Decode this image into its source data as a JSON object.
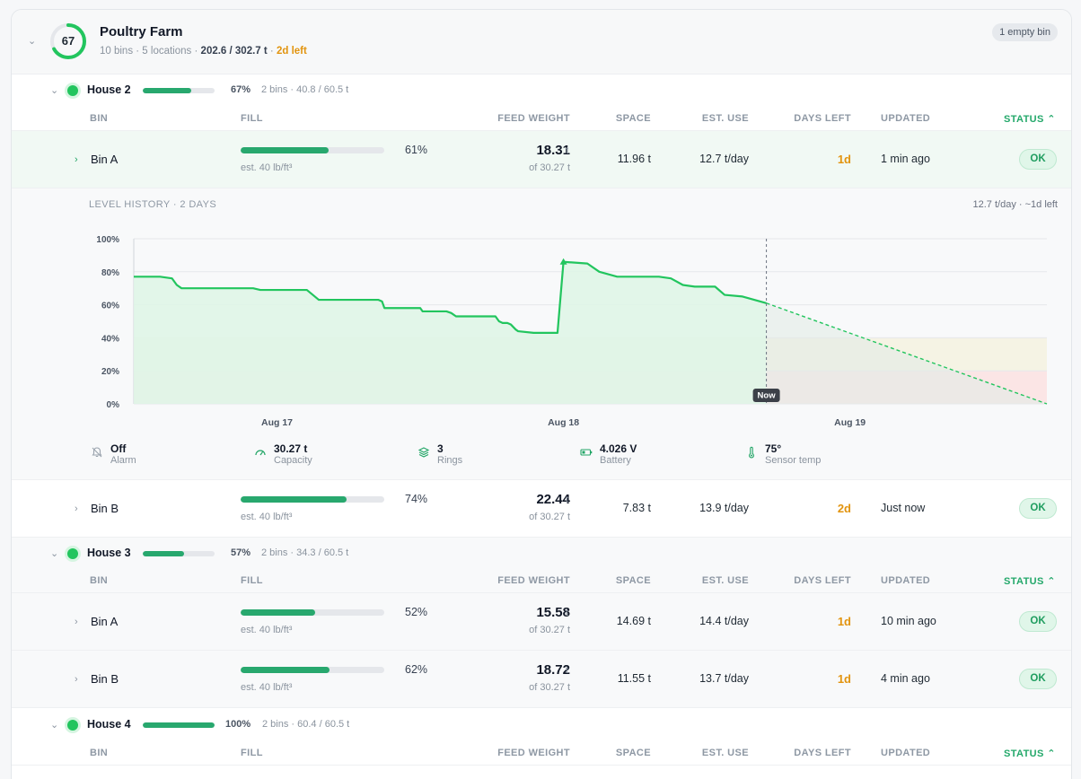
{
  "farm": {
    "score": "67",
    "score_fraction": 0.67,
    "name": "Poultry Farm",
    "bins_locations": "10 bins · 5 locations",
    "sep": "·",
    "weight": "202.6 / 302.7 t",
    "days_left": "2d left",
    "empty_badge": "1 empty bin"
  },
  "columns": {
    "bin": "BIN",
    "fill": "FILL",
    "feed_weight": "FEED WEIGHT",
    "space": "SPACE",
    "est_use": "EST. USE",
    "days_left": "DAYS LEFT",
    "updated": "UPDATED",
    "status": "STATUS"
  },
  "houses": [
    {
      "name": "House 2",
      "fill_fraction": 0.67,
      "pct": "67%",
      "meta": "2 bins · 40.8 / 60.5 t",
      "bins": [
        {
          "name": "Bin A",
          "fill_fraction": 0.61,
          "pct": "61%",
          "est": "est. 40 lb/ft³",
          "weight": "18.31",
          "unit": "t",
          "of": "of 30.27 t",
          "space": "11.96 t",
          "use": "12.7 t/day",
          "days": "1d",
          "updated": "1 min ago",
          "status": "OK"
        },
        {
          "name": "Bin B",
          "fill_fraction": 0.74,
          "pct": "74%",
          "est": "est. 40 lb/ft³",
          "weight": "22.44",
          "unit": "t",
          "of": "of 30.27 t",
          "space": "7.83 t",
          "use": "13.9 t/day",
          "days": "2d",
          "updated": "Just now",
          "status": "OK"
        }
      ]
    },
    {
      "name": "House 3",
      "fill_fraction": 0.57,
      "pct": "57%",
      "meta": "2 bins · 34.3 / 60.5 t",
      "bins": [
        {
          "name": "Bin A",
          "fill_fraction": 0.52,
          "pct": "52%",
          "est": "est. 40 lb/ft³",
          "weight": "15.58",
          "unit": "t",
          "of": "of 30.27 t",
          "space": "14.69 t",
          "use": "14.4 t/day",
          "days": "1d",
          "updated": "10 min ago",
          "status": "OK"
        },
        {
          "name": "Bin B",
          "fill_fraction": 0.62,
          "pct": "62%",
          "est": "est. 40 lb/ft³",
          "weight": "18.72",
          "unit": "t",
          "of": "of 30.27 t",
          "space": "11.55 t",
          "use": "13.7 t/day",
          "days": "1d",
          "updated": "4 min ago",
          "status": "OK"
        }
      ]
    },
    {
      "name": "House 4",
      "fill_fraction": 1.0,
      "pct": "100%",
      "meta": "2 bins · 60.4 / 60.5 t",
      "bins": []
    }
  ],
  "history": {
    "title": "LEVEL HISTORY · 2 DAYS",
    "rate": "12.7 t/day · ~1d left",
    "now_label": "Now",
    "stats": [
      {
        "value": "Off",
        "label": "Alarm",
        "icon": "bell-off-icon"
      },
      {
        "value": "30.27 t",
        "label": "Capacity",
        "icon": "gauge-icon"
      },
      {
        "value": "3",
        "label": "Rings",
        "icon": "layers-icon"
      },
      {
        "value": "4.026 V",
        "label": "Battery",
        "icon": "battery-icon"
      },
      {
        "value": "75°",
        "label": "Sensor temp",
        "icon": "thermometer-icon"
      }
    ]
  },
  "chart_data": {
    "type": "line",
    "x_unit": "hours since Aug 16 12:00",
    "x_ticks": [
      {
        "x": 12,
        "label": "Aug 17"
      },
      {
        "x": 36,
        "label": "Aug 18"
      },
      {
        "x": 60,
        "label": "Aug 19"
      }
    ],
    "xlim": [
      0,
      76.5
    ],
    "ylim": [
      0,
      100
    ],
    "y_ticks": [
      "0%",
      "20%",
      "40%",
      "60%",
      "80%",
      "100%"
    ],
    "grid": true,
    "series": [
      {
        "type": "actual",
        "x": [
          0,
          2.2,
          3.2,
          3.6,
          4.0,
          7,
          9.0,
          10.0,
          10.6,
          11.0,
          14.5,
          15.0,
          15.5,
          18.2,
          18.6,
          19.2,
          20.5,
          20.8,
          21.0,
          23.5,
          24.0,
          24.2,
          26.2,
          26.6,
          27.0,
          28.2,
          28.6,
          29.0,
          30.3,
          30.6,
          30.9,
          31.0,
          31.3,
          31.6,
          32.0,
          32.2,
          33.5,
          34.0,
          35.5,
          36.0,
          38.0,
          39.0,
          40.5,
          41.2,
          41.5,
          42.0,
          42.5,
          43.5,
          44.0,
          45.0,
          46.0,
          47.0,
          48.0,
          48.7,
          49.5,
          51.0,
          53.0
        ],
        "y": [
          77,
          77,
          76,
          72,
          70,
          70,
          70,
          70,
          69,
          69,
          69,
          66,
          63,
          63,
          63,
          63,
          63,
          62,
          58,
          58,
          58,
          56,
          56,
          55,
          53,
          53,
          53,
          53,
          53,
          50,
          49,
          49,
          49,
          48,
          45,
          44,
          43,
          43,
          43,
          86,
          85,
          80,
          77,
          77,
          77,
          77,
          77,
          77,
          77,
          76,
          72,
          71,
          71,
          71,
          66,
          65,
          61
        ]
      },
      {
        "type": "forecast",
        "x": [
          53,
          76.5
        ],
        "y": [
          61,
          0
        ]
      }
    ],
    "now_x": 53,
    "zones": [
      {
        "from": 0,
        "to": 20,
        "color": "#fbe5e5"
      },
      {
        "from": 20,
        "to": 40,
        "color": "#f5f3e4"
      }
    ],
    "colors": {
      "line": "#22c55e",
      "fill": "#dff5e7",
      "forecast": "#22c55e"
    }
  },
  "colors": {
    "accent": "#28a86e",
    "warn": "#e2940f",
    "ok_bg": "#e0f6e9",
    "ok_text": "#1f9d5f"
  }
}
